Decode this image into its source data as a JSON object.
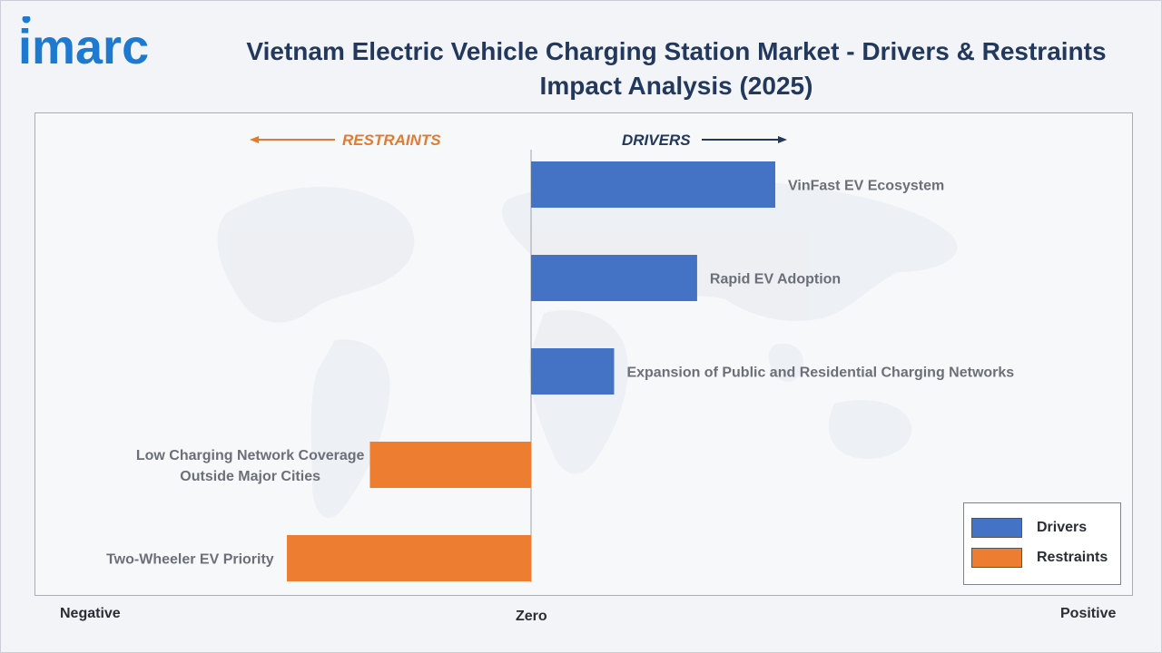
{
  "brand": {
    "logo_text": "imarc",
    "logo_color": "#1e7ad0"
  },
  "header": {
    "title_line1": "Vietnam Electric Vehicle Charging Station Market - Drivers & Restraints",
    "title_line2": "Impact Analysis (2025)"
  },
  "axis": {
    "negative": "Negative",
    "zero": "Zero",
    "positive": "Positive"
  },
  "legend": {
    "drivers": "Drivers",
    "restraints": "Restraints"
  },
  "chart_data": {
    "type": "bar",
    "orientation": "horizontal-diverging",
    "direction_labels": {
      "restraints": "RESTRAINTS",
      "drivers": "DRIVERS"
    },
    "xlim": [
      -1,
      1
    ],
    "grid": false,
    "legend_position": "bottom-right",
    "colors": {
      "drivers": "#4472c4",
      "restraints": "#ed7d31",
      "restraints_label": "#e07b34",
      "drivers_label": "#22385c"
    },
    "categories": [
      "VinFast EV Ecosystem",
      "Rapid EV Adoption",
      "Expansion of Public and Residential Charging Networks",
      "Low Charging Network Coverage Outside Major Cities",
      "Two-Wheeler EV Priority"
    ],
    "series": [
      {
        "name": "Drivers",
        "values": [
          0.5,
          0.34,
          0.17,
          null,
          null
        ]
      },
      {
        "name": "Restraints",
        "values": [
          null,
          null,
          null,
          -0.33,
          -0.5
        ]
      }
    ]
  }
}
